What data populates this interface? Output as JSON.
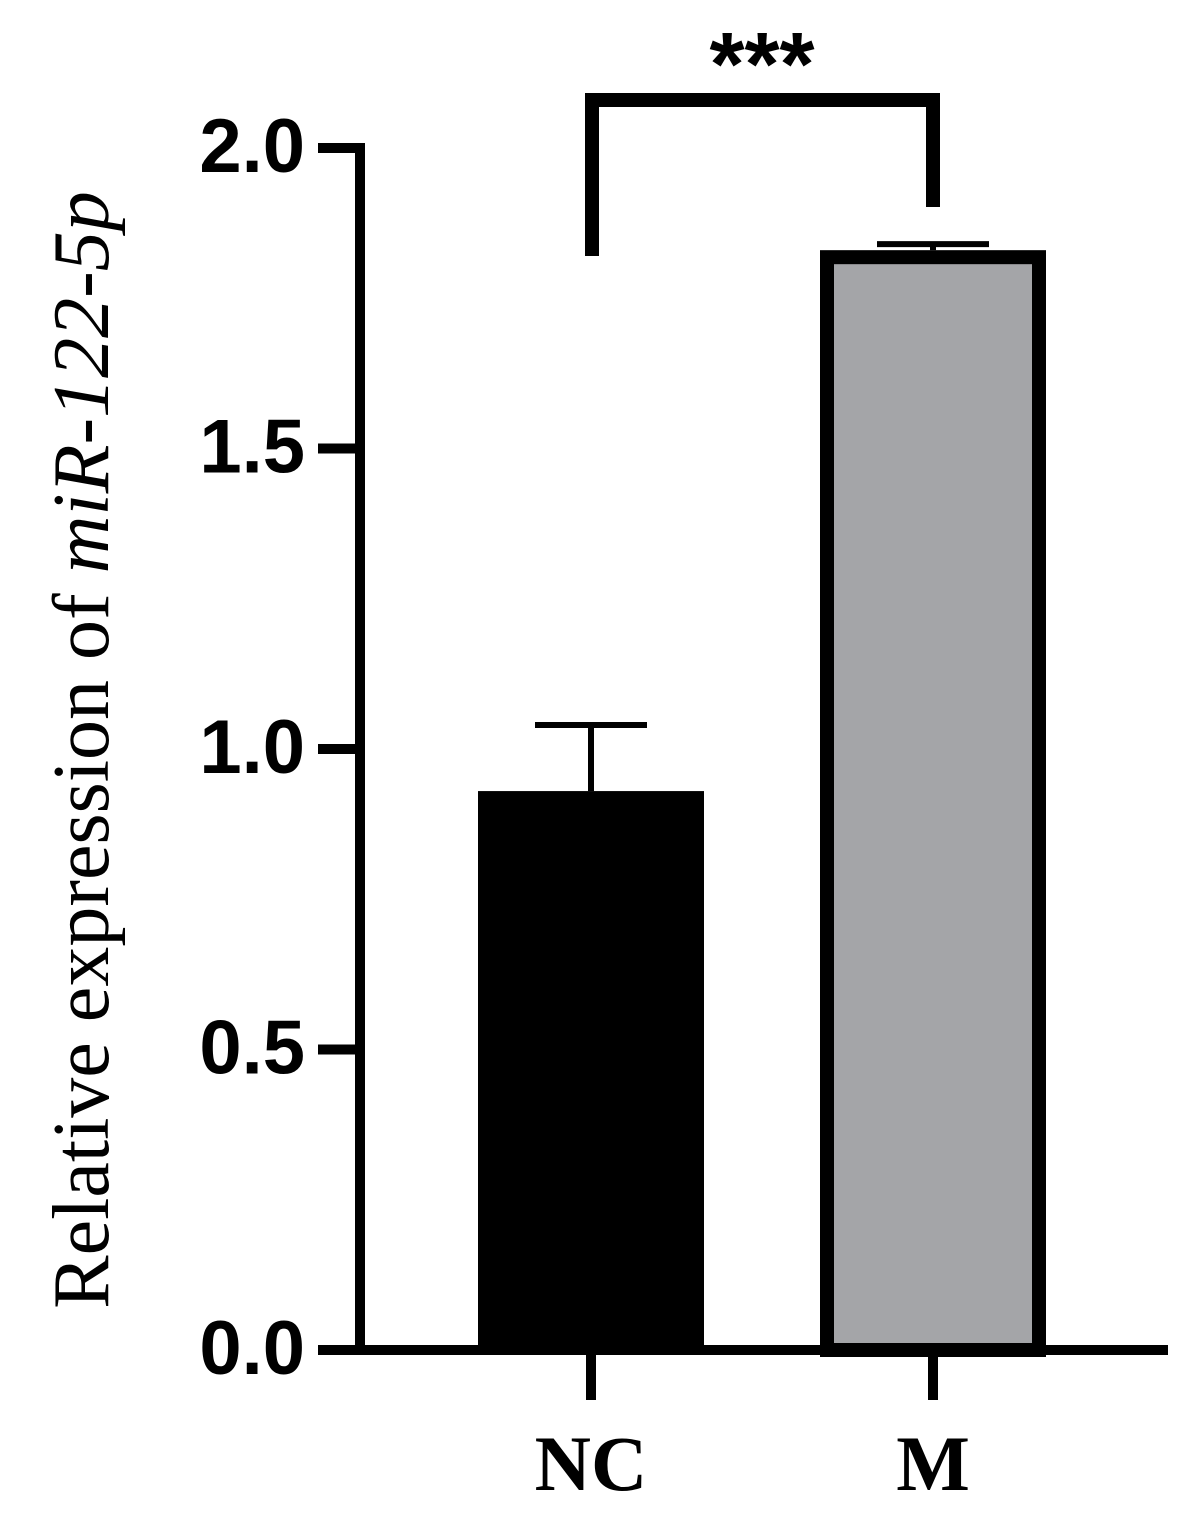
{
  "chart_data": {
    "type": "bar",
    "ylabel_parts": [
      "Relative expression of",
      "miR-122-5p"
    ],
    "categories": [
      "NC",
      "M"
    ],
    "values": [
      0.93,
      1.83
    ],
    "errors": [
      0.11,
      0.01
    ],
    "colors": [
      "#000000",
      "#a4a5a8"
    ],
    "ylim": [
      0,
      2.0
    ],
    "yticks": [
      {
        "value": 0,
        "label": "0.0"
      },
      {
        "value": 0.5,
        "label": "0.5"
      },
      {
        "value": 1,
        "label": "1.0"
      },
      {
        "value": 1.5,
        "label": "1.5"
      },
      {
        "value": 2,
        "label": "2.0"
      }
    ],
    "annotation": "***"
  }
}
